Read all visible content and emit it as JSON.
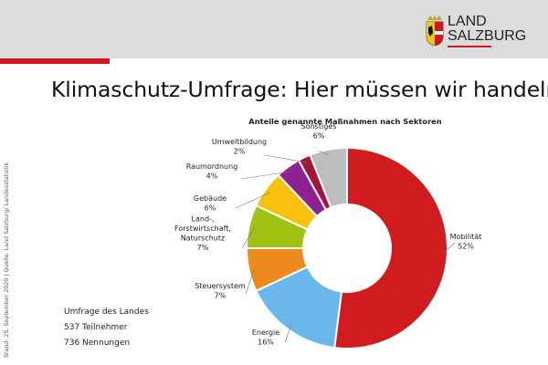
{
  "header": {
    "logo_line1": "LAND",
    "logo_line2": "SALZBURG",
    "brand_color": "#d01820"
  },
  "title": "Klimaschutz-Umfrage: Hier müssen wir handeln",
  "side_note": "Stand: 25. September 2020 | Quelle: Land Salzburg/ Landesstatistik",
  "survey": {
    "line1": "Umfrage des Landes",
    "line2": "537 Teilnehmer",
    "line3": "736 Nennungen"
  },
  "chart_data": {
    "type": "pie",
    "donut": true,
    "title": "Anteile genannte Maßnahmen nach Sektoren",
    "unit": "%",
    "slices": [
      {
        "label_lines": [
          "Mobilität"
        ],
        "value": 52,
        "value_label": "52%",
        "color": "#d01c1f"
      },
      {
        "label_lines": [
          "Energie"
        ],
        "value": 16,
        "value_label": "16%",
        "color": "#6ab7eb"
      },
      {
        "label_lines": [
          "Steuersystem"
        ],
        "value": 7,
        "value_label": "7%",
        "color": "#ec8a1e"
      },
      {
        "label_lines": [
          "Land-,",
          "Forstwirtschaft,",
          "Naturschutz"
        ],
        "value": 7,
        "value_label": "7%",
        "color": "#9fc212"
      },
      {
        "label_lines": [
          "Gebäude"
        ],
        "value": 6,
        "value_label": "6%",
        "color": "#f7c10d"
      },
      {
        "label_lines": [
          "Raumordnung"
        ],
        "value": 4,
        "value_label": "4%",
        "color": "#8e2290"
      },
      {
        "label_lines": [
          "Umweltbildung"
        ],
        "value": 2,
        "value_label": "2%",
        "color": "#a3173a"
      },
      {
        "label_lines": [
          "Sonstiges"
        ],
        "value": 6,
        "value_label": "6%",
        "color": "#bdbdbd"
      }
    ]
  }
}
